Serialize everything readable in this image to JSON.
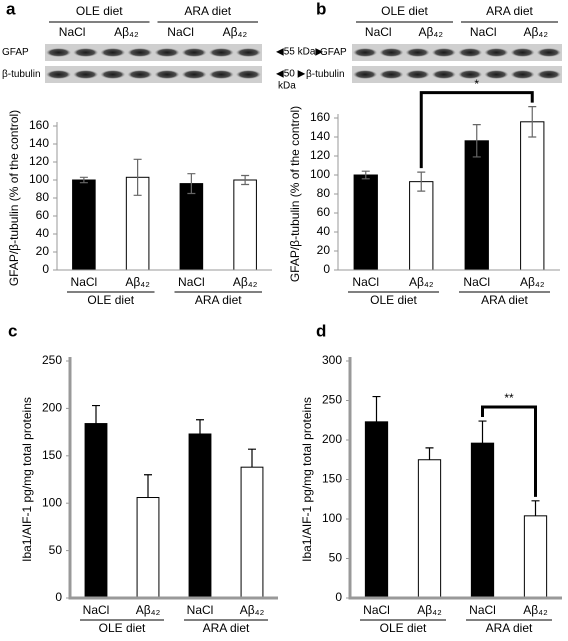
{
  "chart_data": [
    {
      "type": "bar",
      "panel": "a",
      "ylabel": "GFAP/β-tubulin (% of the control)",
      "categories": [
        "NaCl",
        "Aβ₄₂",
        "NaCl",
        "Aβ₄₂"
      ],
      "groups": [
        "OLE diet",
        "ARA diet"
      ],
      "values": [
        100,
        103,
        96,
        100
      ],
      "errors": [
        3,
        20,
        11,
        5
      ],
      "colors": [
        "#000000",
        "#ffffff",
        "#000000",
        "#ffffff"
      ],
      "error_bars": "both",
      "ylim": [
        0,
        160
      ],
      "yticks": [
        0,
        20,
        40,
        60,
        80,
        100,
        120,
        140,
        160
      ]
    },
    {
      "type": "bar",
      "panel": "b",
      "ylabel": "GFAP/β-tubulin (% of the control)",
      "categories": [
        "NaCl",
        "Aβ₄₂",
        "NaCl",
        "Aβ₄₂"
      ],
      "groups": [
        "OLE diet",
        "ARA diet"
      ],
      "values": [
        100,
        93,
        136,
        156
      ],
      "errors": [
        4,
        10,
        17,
        16
      ],
      "colors": [
        "#000000",
        "#ffffff",
        "#000000",
        "#ffffff"
      ],
      "error_bars": "both",
      "ylim": [
        0,
        160
      ],
      "yticks": [
        0,
        20,
        40,
        60,
        80,
        100,
        120,
        140,
        160
      ],
      "significance": {
        "label": "*",
        "between": [
          1,
          3
        ]
      }
    },
    {
      "type": "bar",
      "panel": "c",
      "ylabel": "Iba1/AIF-1 pg/mg total proteins",
      "categories": [
        "NaCl",
        "Aβ₄₂",
        "NaCl",
        "Aβ₄₂"
      ],
      "groups": [
        "OLE diet",
        "ARA diet"
      ],
      "values": [
        184,
        106,
        173,
        138
      ],
      "errors": [
        19,
        24,
        15,
        19
      ],
      "colors": [
        "#000000",
        "#ffffff",
        "#000000",
        "#ffffff"
      ],
      "error_bars": "upper",
      "ylim": [
        0,
        250
      ],
      "yticks": [
        0,
        50,
        100,
        150,
        200,
        250
      ]
    },
    {
      "type": "bar",
      "panel": "d",
      "ylabel": "Iba1/AIF-1 pg/mg total proteins",
      "categories": [
        "NaCl",
        "Aβ₄₂",
        "NaCl",
        "Aβ₄₂"
      ],
      "groups": [
        "OLE diet",
        "ARA diet"
      ],
      "values": [
        223,
        175,
        196,
        104
      ],
      "errors": [
        32,
        15,
        28,
        19
      ],
      "colors": [
        "#000000",
        "#ffffff",
        "#000000",
        "#ffffff"
      ],
      "error_bars": "upper",
      "ylim": [
        0,
        300
      ],
      "yticks": [
        0,
        50,
        100,
        150,
        200,
        250,
        300
      ],
      "significance": {
        "label": "**",
        "between": [
          2,
          3
        ]
      }
    }
  ],
  "blots": [
    {
      "groups": [
        "OLE diet",
        "ARA diet"
      ],
      "lanes": [
        "NaCl",
        "Aβ₄₂",
        "NaCl",
        "Aβ₄₂"
      ],
      "rows": [
        "GFAP",
        "β-tubulin"
      ]
    },
    {
      "groups": [
        "OLE diet",
        "ARA diet"
      ],
      "lanes": [
        "NaCl",
        "Aβ₄₂",
        "NaCl",
        "Aβ₄₂"
      ],
      "rows": [
        "GFAP",
        "β-tubulin"
      ]
    }
  ],
  "markers": [
    "◀55 kDa▶",
    "◀50 ▶",
    "kDa"
  ]
}
